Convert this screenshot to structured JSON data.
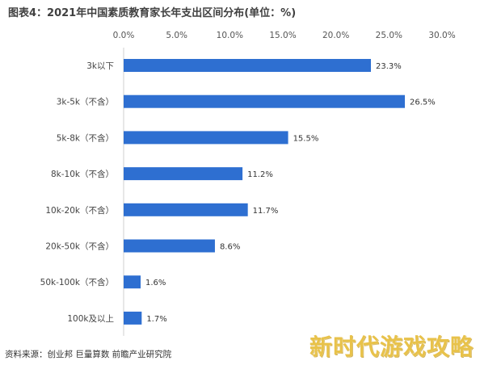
{
  "title": "图表4：2021年中国素质教育家长年支出区间分布(单位：%)",
  "source": "资料来源：创业邦 巨量算数 前瞻产业研究院",
  "watermark_brand": "新时代游戏攻略",
  "colors": {
    "bar": "#2e6fd1",
    "axis": "#cfcfcf"
  },
  "chart_data": {
    "type": "bar",
    "orientation": "horizontal",
    "title": "图表4：2021年中国素质教育家长年支出区间分布(单位：%)",
    "xlim": [
      0,
      30
    ],
    "x_ticks": [
      "0.0%",
      "5.0%",
      "10.0%",
      "15.0%",
      "20.0%",
      "25.0%",
      "30.0%"
    ],
    "x_tick_values": [
      0,
      5,
      10,
      15,
      20,
      25,
      30
    ],
    "x_axis_position": "top",
    "grid": false,
    "categories": [
      "3k以下",
      "3k-5k（不含）",
      "5k-8k（不含）",
      "8k-10k（不含）",
      "10k-20k（不含）",
      "20k-50k（不含）",
      "50k-100k（不含）",
      "100k及以上"
    ],
    "values": [
      23.3,
      26.5,
      15.5,
      11.2,
      11.7,
      8.6,
      1.6,
      1.7
    ],
    "value_labels": [
      "23.3%",
      "26.5%",
      "15.5%",
      "11.2%",
      "11.7%",
      "8.6%",
      "1.6%",
      "1.7%"
    ]
  }
}
